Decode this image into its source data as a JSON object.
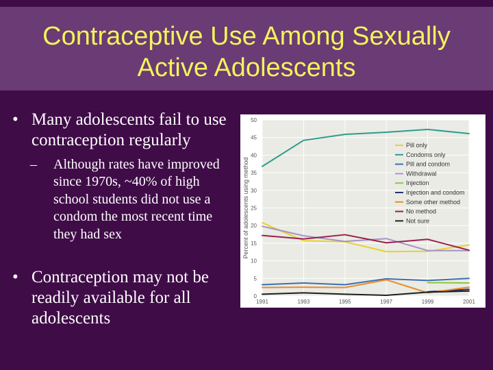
{
  "slide": {
    "title": "Contraceptive Use Among Sexually Active Adolescents",
    "bullet_marker": "•",
    "sub_marker": "–",
    "bullets": [
      "Many adolescents fail to use contraception regularly",
      "Contraception may not be readily available for all adolescents"
    ],
    "subbullet": "Although rates have improved since 1970s, ~40% of high school students did not use a condom the most recent time they had sex"
  },
  "colors": {
    "background": "#3f0c47",
    "title_bar": "#6a3b75",
    "title_text": "#f3f35a",
    "body_text": "#ffffff"
  },
  "chart_data": {
    "type": "line",
    "title": "",
    "xlabel": "",
    "ylabel": "Percent of adolescents using method",
    "x": [
      1991,
      1993,
      1995,
      1997,
      1999,
      2001
    ],
    "ylim": [
      0,
      50
    ],
    "yticks": [
      0,
      5,
      10,
      15,
      20,
      25,
      30,
      35,
      40,
      45,
      50
    ],
    "grid": true,
    "legend_position": "right",
    "series": [
      {
        "name": "Pill only",
        "color": "#e8d22a",
        "values": [
          20.8,
          15.7,
          15.4,
          12.6,
          12.7,
          14.5
        ]
      },
      {
        "name": "Condoms only",
        "color": "#2b9c8e",
        "values": [
          36.8,
          44.2,
          45.9,
          46.5,
          47.3,
          46.1
        ]
      },
      {
        "name": "Pill and condom",
        "color": "#3d6fb0",
        "values": [
          3.2,
          3.7,
          3.2,
          4.9,
          4.4,
          5.0
        ]
      },
      {
        "name": "Withdrawal",
        "color": "#a592c8",
        "values": [
          19.8,
          17.1,
          15.5,
          16.3,
          12.9,
          12.9
        ]
      },
      {
        "name": "Injection",
        "color": "#8cc63e",
        "values": [
          null,
          null,
          null,
          null,
          3.8,
          3.7
        ]
      },
      {
        "name": "Injection and condom",
        "color": "#27316b",
        "values": [
          null,
          null,
          null,
          null,
          1.2,
          1.9
        ]
      },
      {
        "name": "Some other method",
        "color": "#e98a2a",
        "values": [
          2.4,
          2.5,
          2.4,
          4.6,
          0.9,
          2.5
        ]
      },
      {
        "name": "No method",
        "color": "#9c1e4a",
        "values": [
          17.2,
          16.2,
          17.4,
          15.1,
          16.1,
          13.0
        ]
      },
      {
        "name": "Not sure",
        "color": "#1f1f1f",
        "values": [
          0.5,
          0.9,
          0.5,
          0.2,
          1.1,
          1.4
        ]
      }
    ]
  }
}
